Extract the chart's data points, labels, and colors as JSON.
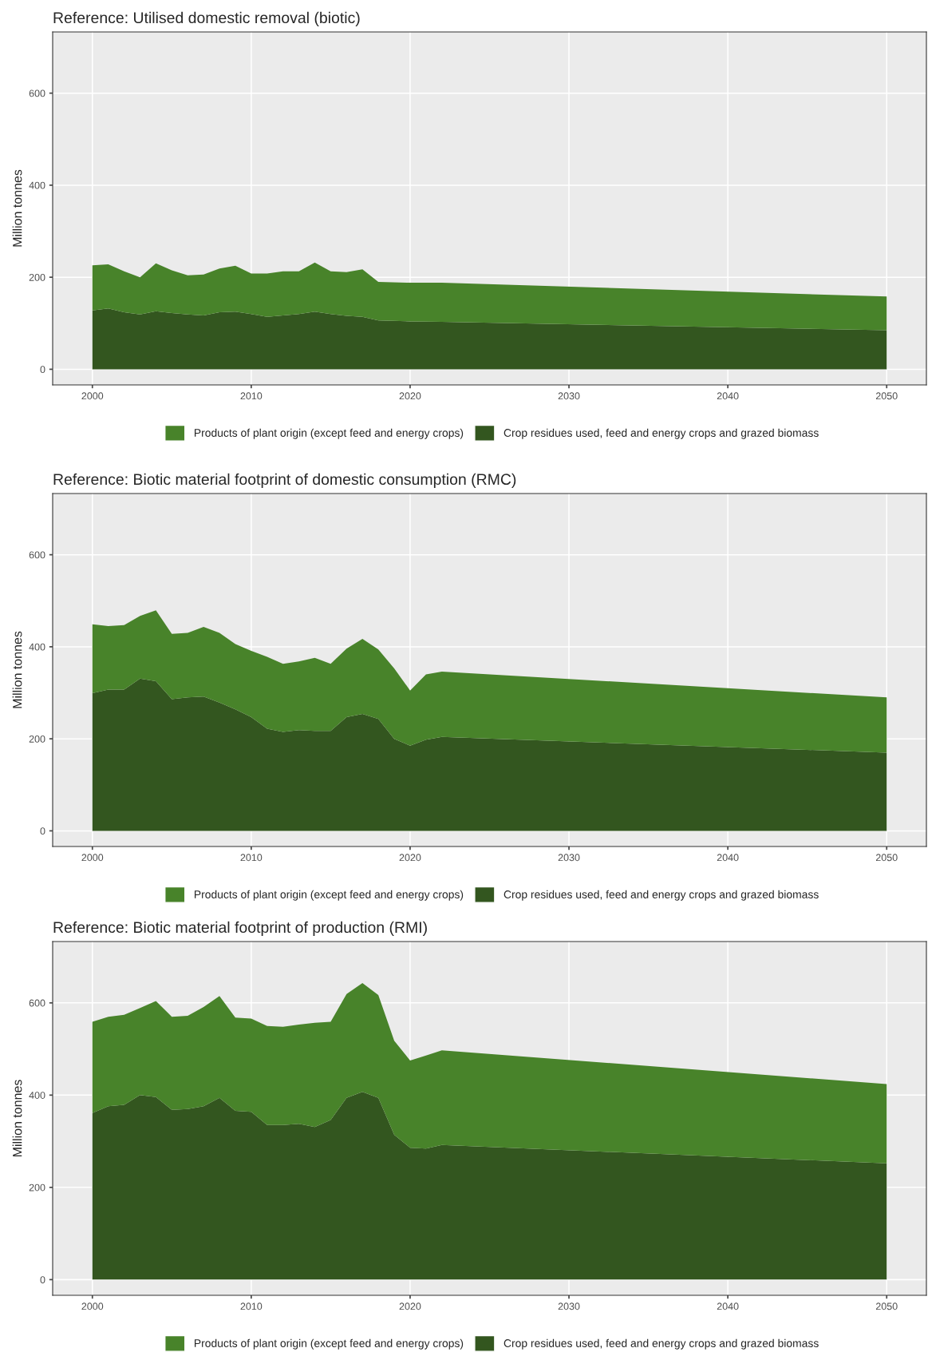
{
  "chart_data": [
    {
      "type": "area",
      "title": "Reference: Utilised domestic removal (biotic)",
      "ylabel": "Million tonnes",
      "stacked": true,
      "grid": true,
      "legend": "bottom",
      "x": [
        2000,
        2001,
        2002,
        2003,
        2004,
        2005,
        2006,
        2007,
        2008,
        2009,
        2010,
        2011,
        2012,
        2013,
        2014,
        2015,
        2016,
        2017,
        2018,
        2020,
        2022,
        2050
      ],
      "xlim": [
        1997.5,
        2052.5
      ],
      "xticks": [
        2000,
        2010,
        2020,
        2030,
        2040,
        2050
      ],
      "ylim": [
        -34,
        733
      ],
      "yticks": [
        0,
        200,
        400,
        600
      ],
      "series": [
        {
          "name": "Crop residues used, feed and energy crops and grazed biomass",
          "color": "#33561f",
          "values": [
            128,
            132,
            124,
            119,
            126,
            122,
            119,
            117,
            124,
            125,
            120,
            114,
            117,
            120,
            125,
            120,
            116,
            114,
            106,
            104,
            103,
            85
          ]
        },
        {
          "name": "Products of plant origin (except feed and energy crops)",
          "color": "#48832a",
          "values": [
            98,
            96,
            89,
            81,
            104,
            93,
            85,
            89,
            95,
            100,
            88,
            94,
            96,
            93,
            107,
            93,
            95,
            103,
            84,
            84,
            85,
            73
          ]
        }
      ]
    },
    {
      "type": "area",
      "title": "Reference: Biotic material footprint of domestic consumption (RMC)",
      "ylabel": "Million tonnes",
      "stacked": true,
      "grid": true,
      "legend": "bottom",
      "x": [
        2000,
        2001,
        2002,
        2003,
        2004,
        2005,
        2006,
        2007,
        2008,
        2009,
        2010,
        2011,
        2012,
        2013,
        2014,
        2015,
        2016,
        2017,
        2018,
        2019,
        2020,
        2021,
        2022,
        2050
      ],
      "xlim": [
        1997.5,
        2052.5
      ],
      "xticks": [
        2000,
        2010,
        2020,
        2030,
        2040,
        2050
      ],
      "ylim": [
        -34,
        733
      ],
      "yticks": [
        0,
        200,
        400,
        600
      ],
      "series": [
        {
          "name": "Crop residues used, feed and energy crops and grazed biomass",
          "color": "#33561f",
          "values": [
            299,
            307,
            307,
            331,
            325,
            286,
            290,
            292,
            279,
            264,
            247,
            222,
            215,
            219,
            217,
            217,
            247,
            254,
            243,
            200,
            185,
            198,
            204,
            170
          ]
        },
        {
          "name": "Products of plant origin (except feed and energy crops)",
          "color": "#48832a",
          "values": [
            150,
            138,
            140,
            136,
            154,
            142,
            140,
            151,
            151,
            142,
            144,
            156,
            148,
            149,
            159,
            146,
            149,
            163,
            151,
            153,
            120,
            142,
            142,
            120
          ]
        }
      ]
    },
    {
      "type": "area",
      "title": "Reference: Biotic material footprint of production (RMI)",
      "ylabel": "Million tonnes",
      "stacked": true,
      "grid": true,
      "legend": "bottom",
      "x": [
        2000,
        2001,
        2002,
        2003,
        2004,
        2005,
        2006,
        2007,
        2008,
        2009,
        2010,
        2011,
        2012,
        2013,
        2014,
        2015,
        2016,
        2017,
        2018,
        2019,
        2020,
        2021,
        2022,
        2050
      ],
      "xlim": [
        1997.5,
        2052.5
      ],
      "xticks": [
        2000,
        2010,
        2020,
        2030,
        2040,
        2050
      ],
      "ylim": [
        -34,
        733
      ],
      "yticks": [
        0,
        200,
        400,
        600
      ],
      "series": [
        {
          "name": "Crop residues used, feed and energy crops and grazed biomass",
          "color": "#33561f",
          "values": [
            361,
            376,
            379,
            400,
            396,
            368,
            370,
            376,
            394,
            366,
            364,
            335,
            335,
            338,
            331,
            346,
            394,
            407,
            394,
            314,
            286,
            284,
            292,
            252
          ]
        },
        {
          "name": "Products of plant origin (except feed and energy crops)",
          "color": "#48832a",
          "values": [
            198,
            194,
            195,
            189,
            208,
            202,
            202,
            215,
            221,
            202,
            202,
            215,
            213,
            215,
            226,
            213,
            225,
            236,
            223,
            204,
            189,
            202,
            205,
            172
          ]
        }
      ]
    }
  ]
}
